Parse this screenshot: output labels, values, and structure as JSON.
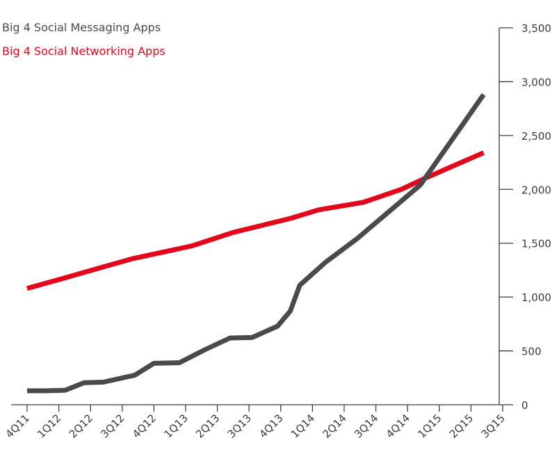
{
  "chart_data": {
    "type": "line",
    "title": "",
    "xlabel": "",
    "ylabel": "",
    "ylim": [
      0,
      3500
    ],
    "yticks": [
      "0",
      "500",
      "1,000",
      "1,500",
      "2,000",
      "2,500",
      "3,000",
      "3,500"
    ],
    "ytick_values": [
      0,
      500,
      1000,
      1500,
      2000,
      2500,
      3000,
      3500
    ],
    "y_axis_position": "right",
    "grid": false,
    "legend_position": "top-left",
    "categories": [
      "4Q11",
      "1Q12",
      "2Q12",
      "3Q12",
      "4Q12",
      "1Q13",
      "2Q13",
      "3Q13",
      "4Q13",
      "1Q14",
      "2Q14",
      "3Q14",
      "4Q14",
      "1Q15",
      "2Q15",
      "3Q15"
    ],
    "series": [
      {
        "name": "Big 4 Social Messaging Apps",
        "color": "#4a4a4a",
        "points": [
          [
            0,
            130
          ],
          [
            0.6,
            130
          ],
          [
            1.2,
            135
          ],
          [
            1.8,
            205
          ],
          [
            2.4,
            210
          ],
          [
            3.4,
            275
          ],
          [
            4.0,
            385
          ],
          [
            4.8,
            390
          ],
          [
            5.6,
            510
          ],
          [
            6.4,
            620
          ],
          [
            7.1,
            625
          ],
          [
            7.9,
            730
          ],
          [
            8.3,
            870
          ],
          [
            8.6,
            1110
          ],
          [
            9.4,
            1320
          ],
          [
            10.4,
            1540
          ],
          [
            11.4,
            1790
          ],
          [
            12.4,
            2040
          ],
          [
            13.4,
            2460
          ],
          [
            14.4,
            2880
          ]
        ]
      },
      {
        "name": "Big 4 Social Networking Apps",
        "color": "#e2071b",
        "points": [
          [
            0,
            1080
          ],
          [
            1.1,
            1170
          ],
          [
            2.1,
            1255
          ],
          [
            3.3,
            1355
          ],
          [
            5.2,
            1475
          ],
          [
            6.5,
            1600
          ],
          [
            8.3,
            1730
          ],
          [
            9.2,
            1810
          ],
          [
            10.6,
            1880
          ],
          [
            11.8,
            2000
          ],
          [
            12.6,
            2110
          ],
          [
            14.4,
            2340
          ]
        ]
      }
    ]
  }
}
